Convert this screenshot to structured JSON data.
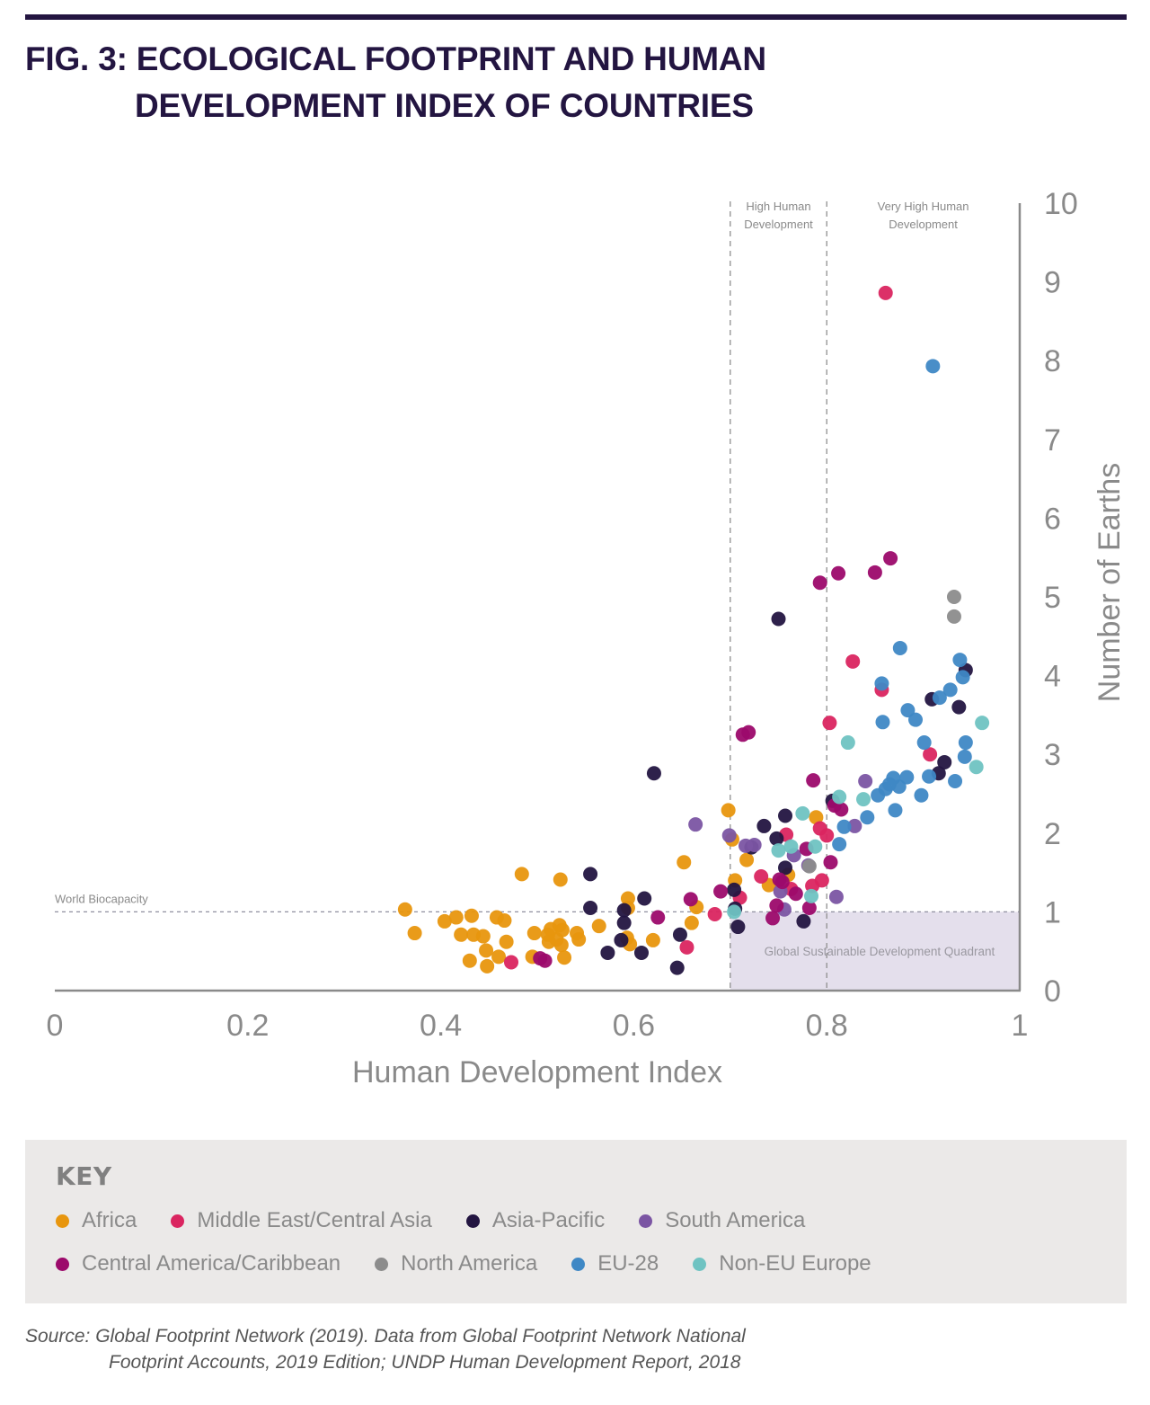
{
  "figure": {
    "title_line1": "FIG. 3: ECOLOGICAL FOOTPRINT AND HUMAN",
    "title_line2": "DEVELOPMENT INDEX OF COUNTRIES",
    "source_line1": "Source: Global Footprint Network (2019). Data from Global Footprint Network National",
    "source_line2": "Footprint Accounts, 2019 Edition; UNDP Human Development Report, 2018"
  },
  "key": {
    "title": "KEY",
    "row1": [
      {
        "label": "Africa",
        "color": "#e8960e"
      },
      {
        "label": "Middle East/Central Asia",
        "color": "#da2560"
      },
      {
        "label": "Asia-Pacific",
        "color": "#231541"
      },
      {
        "label": "South America",
        "color": "#7b55a3"
      }
    ],
    "row2": [
      {
        "label": "Central America/Caribbean",
        "color": "#9c0a6b"
      },
      {
        "label": "North America",
        "color": "#8c8c8c"
      },
      {
        "label": "EU-28",
        "color": "#3f88c5"
      },
      {
        "label": "Non-EU Europe",
        "color": "#6fc3c2"
      }
    ]
  },
  "chart_data": {
    "type": "scatter",
    "title": "Ecological Footprint and Human Development Index of Countries",
    "xlabel": "Human Development Index",
    "ylabel": "Number of Earths",
    "xlim": [
      0,
      1
    ],
    "ylim": [
      0,
      10
    ],
    "xticks": [
      "0",
      "0.2",
      "0.4",
      "0.6",
      "0.8",
      "1"
    ],
    "xtick_values": [
      0,
      0.2,
      0.4,
      0.6,
      0.8,
      1
    ],
    "yticks": [
      "0",
      "1",
      "2",
      "3",
      "4",
      "5",
      "6",
      "7",
      "8",
      "9",
      "10"
    ],
    "ytick_values": [
      0,
      1,
      2,
      3,
      4,
      5,
      6,
      7,
      8,
      9,
      10
    ],
    "grid": false,
    "legend_position": "bottom",
    "reference_lines": [
      {
        "axis": "y",
        "value": 1,
        "label": "World Biocapacity",
        "style": "dashed"
      },
      {
        "axis": "x",
        "value": 0.7,
        "style": "dashed"
      },
      {
        "axis": "x",
        "value": 0.8,
        "style": "dashed"
      }
    ],
    "band_labels": [
      {
        "label_line1": "High Human",
        "label_line2": "Development",
        "x_range": [
          0.7,
          0.8
        ]
      },
      {
        "label_line1": "Very High Human",
        "label_line2": "Development",
        "x_range": [
          0.8,
          1.0
        ]
      }
    ],
    "quadrant": {
      "label": "Global Sustainable Development Quadrant",
      "x_range": [
        0.7,
        1.0
      ],
      "y_range": [
        0,
        1
      ],
      "color": "#e4dfec"
    },
    "series": [
      {
        "name": "Africa",
        "color": "#e8960e",
        "points": [
          [
            0.363,
            1.03
          ],
          [
            0.373,
            0.73
          ],
          [
            0.404,
            0.88
          ],
          [
            0.416,
            0.93
          ],
          [
            0.421,
            0.71
          ],
          [
            0.43,
            0.38
          ],
          [
            0.432,
            0.95
          ],
          [
            0.434,
            0.71
          ],
          [
            0.444,
            0.69
          ],
          [
            0.447,
            0.51
          ],
          [
            0.448,
            0.31
          ],
          [
            0.458,
            0.93
          ],
          [
            0.46,
            0.43
          ],
          [
            0.466,
            0.89
          ],
          [
            0.468,
            0.62
          ],
          [
            0.495,
            0.43
          ],
          [
            0.497,
            0.73
          ],
          [
            0.484,
            1.48
          ],
          [
            0.511,
            0.71
          ],
          [
            0.512,
            0.62
          ],
          [
            0.514,
            0.78
          ],
          [
            0.52,
            0.65
          ],
          [
            0.523,
            0.83
          ],
          [
            0.525,
            0.58
          ],
          [
            0.526,
            0.77
          ],
          [
            0.528,
            0.42
          ],
          [
            0.524,
            1.41
          ],
          [
            0.541,
            0.73
          ],
          [
            0.543,
            0.65
          ],
          [
            0.564,
            0.82
          ],
          [
            0.594,
            1.17
          ],
          [
            0.594,
            1.05
          ],
          [
            0.593,
            0.67
          ],
          [
            0.596,
            0.59
          ],
          [
            0.62,
            0.64
          ],
          [
            0.652,
            1.63
          ],
          [
            0.66,
            0.86
          ],
          [
            0.665,
            1.06
          ],
          [
            0.698,
            2.29
          ],
          [
            0.702,
            1.92
          ],
          [
            0.705,
            1.4
          ],
          [
            0.717,
            1.66
          ],
          [
            0.74,
            1.34
          ],
          [
            0.76,
            1.47
          ],
          [
            0.789,
            2.2
          ]
        ]
      },
      {
        "name": "Middle East/Central Asia",
        "color": "#da2560",
        "points": [
          [
            0.473,
            0.36
          ],
          [
            0.655,
            0.55
          ],
          [
            0.684,
            0.97
          ],
          [
            0.71,
            1.18
          ],
          [
            0.732,
            1.45
          ],
          [
            0.758,
            1.98
          ],
          [
            0.763,
            1.29
          ],
          [
            0.785,
            1.33
          ],
          [
            0.793,
            2.06
          ],
          [
            0.795,
            1.4
          ],
          [
            0.8,
            1.97
          ],
          [
            0.803,
            3.4
          ],
          [
            0.827,
            4.18
          ],
          [
            0.857,
            3.82
          ],
          [
            0.861,
            8.86
          ],
          [
            0.907,
            3.0
          ]
        ]
      },
      {
        "name": "Asia-Pacific",
        "color": "#231541",
        "points": [
          [
            0.555,
            1.48
          ],
          [
            0.555,
            1.05
          ],
          [
            0.573,
            0.48
          ],
          [
            0.587,
            0.64
          ],
          [
            0.59,
            0.86
          ],
          [
            0.59,
            1.02
          ],
          [
            0.608,
            0.48
          ],
          [
            0.611,
            1.17
          ],
          [
            0.621,
            2.76
          ],
          [
            0.645,
            0.29
          ],
          [
            0.648,
            0.71
          ],
          [
            0.704,
            1.28
          ],
          [
            0.705,
            1.04
          ],
          [
            0.708,
            0.81
          ],
          [
            0.722,
            1.82
          ],
          [
            0.735,
            2.09
          ],
          [
            0.748,
            1.93
          ],
          [
            0.75,
            4.72
          ],
          [
            0.757,
            2.22
          ],
          [
            0.757,
            1.56
          ],
          [
            0.776,
            0.88
          ],
          [
            0.806,
            2.41
          ],
          [
            0.909,
            3.7
          ],
          [
            0.916,
            2.76
          ],
          [
            0.922,
            2.9
          ],
          [
            0.937,
            3.6
          ],
          [
            0.944,
            4.07
          ]
        ]
      },
      {
        "name": "South America",
        "color": "#7b55a3",
        "points": [
          [
            0.664,
            2.11
          ],
          [
            0.699,
            1.97
          ],
          [
            0.716,
            1.84
          ],
          [
            0.725,
            1.85
          ],
          [
            0.752,
            1.26
          ],
          [
            0.756,
            1.03
          ],
          [
            0.766,
            1.72
          ],
          [
            0.781,
            1.59
          ],
          [
            0.81,
            1.19
          ],
          [
            0.829,
            2.09
          ],
          [
            0.84,
            2.66
          ]
        ]
      },
      {
        "name": "Central America/Caribbean",
        "color": "#9c0a6b",
        "points": [
          [
            0.503,
            0.41
          ],
          [
            0.508,
            0.38
          ],
          [
            0.625,
            0.93
          ],
          [
            0.659,
            1.16
          ],
          [
            0.69,
            1.26
          ],
          [
            0.713,
            3.25
          ],
          [
            0.719,
            3.28
          ],
          [
            0.744,
            0.92
          ],
          [
            0.748,
            1.08
          ],
          [
            0.751,
            1.41
          ],
          [
            0.754,
            1.38
          ],
          [
            0.768,
            1.23
          ],
          [
            0.779,
            1.8
          ],
          [
            0.782,
            1.05
          ],
          [
            0.786,
            2.67
          ],
          [
            0.793,
            5.18
          ],
          [
            0.804,
            1.63
          ],
          [
            0.808,
            2.35
          ],
          [
            0.812,
            5.3
          ],
          [
            0.815,
            2.3
          ],
          [
            0.85,
            5.31
          ],
          [
            0.866,
            5.49
          ]
        ]
      },
      {
        "name": "North America",
        "color": "#8c8c8c",
        "points": [
          [
            0.782,
            1.58
          ],
          [
            0.932,
            5.0
          ],
          [
            0.932,
            4.75
          ]
        ]
      },
      {
        "name": "EU-28",
        "color": "#3f88c5",
        "points": [
          [
            0.813,
            1.86
          ],
          [
            0.818,
            2.08
          ],
          [
            0.842,
            2.2
          ],
          [
            0.853,
            2.48
          ],
          [
            0.857,
            3.9
          ],
          [
            0.858,
            3.41
          ],
          [
            0.861,
            2.56
          ],
          [
            0.865,
            2.62
          ],
          [
            0.869,
            2.7
          ],
          [
            0.871,
            2.29
          ],
          [
            0.875,
            2.59
          ],
          [
            0.876,
            4.35
          ],
          [
            0.883,
            2.71
          ],
          [
            0.884,
            3.56
          ],
          [
            0.892,
            3.44
          ],
          [
            0.898,
            2.48
          ],
          [
            0.901,
            3.15
          ],
          [
            0.906,
            2.72
          ],
          [
            0.91,
            7.93
          ],
          [
            0.917,
            3.72
          ],
          [
            0.928,
            3.82
          ],
          [
            0.933,
            2.66
          ],
          [
            0.938,
            4.2
          ],
          [
            0.941,
            3.98
          ],
          [
            0.944,
            3.15
          ],
          [
            0.943,
            2.97
          ]
        ]
      },
      {
        "name": "Non-EU Europe",
        "color": "#6fc3c2",
        "points": [
          [
            0.704,
            1.0
          ],
          [
            0.75,
            1.78
          ],
          [
            0.763,
            1.83
          ],
          [
            0.775,
            2.25
          ],
          [
            0.784,
            1.2
          ],
          [
            0.788,
            1.83
          ],
          [
            0.813,
            2.46
          ],
          [
            0.822,
            3.15
          ],
          [
            0.838,
            2.43
          ],
          [
            0.955,
            2.84
          ],
          [
            0.961,
            3.4
          ]
        ]
      }
    ]
  }
}
